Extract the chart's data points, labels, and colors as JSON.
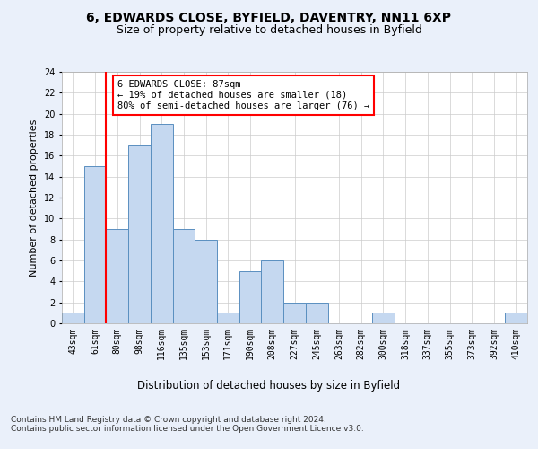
{
  "title1": "6, EDWARDS CLOSE, BYFIELD, DAVENTRY, NN11 6XP",
  "title2": "Size of property relative to detached houses in Byfield",
  "xlabel": "Distribution of detached houses by size in Byfield",
  "ylabel": "Number of detached properties",
  "categories": [
    "43sqm",
    "61sqm",
    "80sqm",
    "98sqm",
    "116sqm",
    "135sqm",
    "153sqm",
    "171sqm",
    "190sqm",
    "208sqm",
    "227sqm",
    "245sqm",
    "263sqm",
    "282sqm",
    "300sqm",
    "318sqm",
    "337sqm",
    "355sqm",
    "373sqm",
    "392sqm",
    "410sqm"
  ],
  "values": [
    1,
    15,
    9,
    17,
    19,
    9,
    8,
    1,
    5,
    6,
    2,
    2,
    0,
    0,
    1,
    0,
    0,
    0,
    0,
    0,
    1
  ],
  "bar_color": "#c5d8f0",
  "bar_edge_color": "#5a8fc0",
  "vline_color": "red",
  "vline_x": 1.5,
  "annotation_text": "6 EDWARDS CLOSE: 87sqm\n← 19% of detached houses are smaller (18)\n80% of semi-detached houses are larger (76) →",
  "annotation_box_color": "white",
  "annotation_box_edge_color": "red",
  "ylim": [
    0,
    24
  ],
  "yticks": [
    0,
    2,
    4,
    6,
    8,
    10,
    12,
    14,
    16,
    18,
    20,
    22,
    24
  ],
  "footer": "Contains HM Land Registry data © Crown copyright and database right 2024.\nContains public sector information licensed under the Open Government Licence v3.0.",
  "background_color": "#eaf0fa",
  "plot_bg_color": "white",
  "grid_color": "#cccccc",
  "title1_fontsize": 10,
  "title2_fontsize": 9,
  "xlabel_fontsize": 8.5,
  "ylabel_fontsize": 8,
  "tick_fontsize": 7,
  "annot_fontsize": 7.5,
  "footer_fontsize": 6.5
}
